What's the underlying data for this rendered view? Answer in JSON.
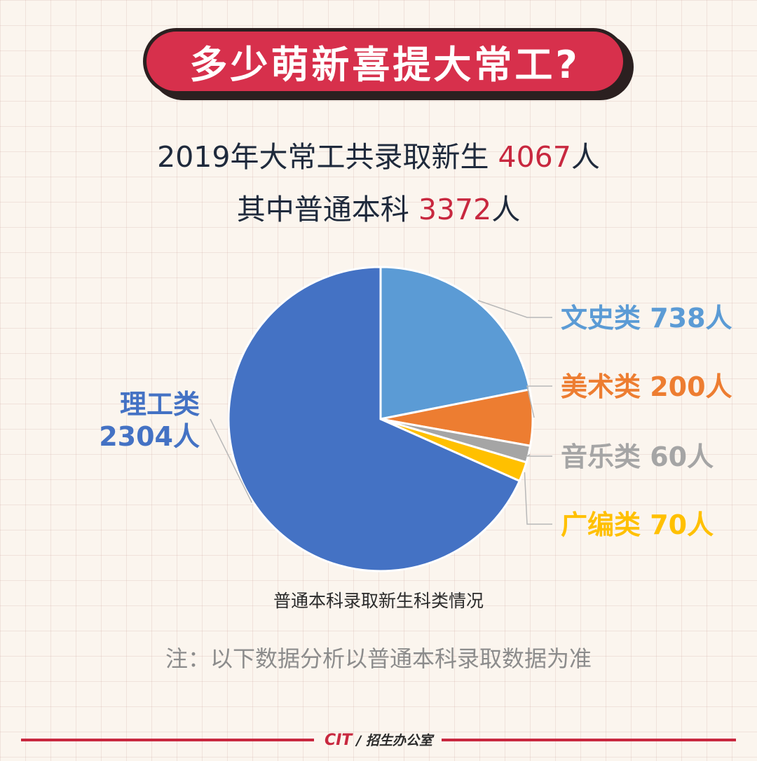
{
  "header": {
    "title": "多少萌新喜提大常工?"
  },
  "summary": {
    "line1_prefix": "2019年大常工共录取新生 ",
    "line1_value": "4067",
    "line1_suffix": "人",
    "line2_prefix": "其中普通本科 ",
    "line2_value": "3372",
    "line2_suffix": "人"
  },
  "chart_data": {
    "type": "pie",
    "caption": "普通本科录取新生科类情况",
    "slices": [
      {
        "name": "文史类",
        "value": 738,
        "label": "文史类 738人",
        "color": "#5b9bd5"
      },
      {
        "name": "美术类",
        "value": 200,
        "label": "美术类 200人",
        "color": "#ed7d31"
      },
      {
        "name": "音乐类",
        "value": 60,
        "label": "音乐类 60人",
        "color": "#a5a5a5"
      },
      {
        "name": "广编类",
        "value": 70,
        "label": "广编类 70人",
        "color": "#ffc000"
      },
      {
        "name": "理工类",
        "value": 2304,
        "label_lines": [
          "理工类",
          "2304人"
        ],
        "color": "#4472c4"
      }
    ]
  },
  "note": "注：以下数据分析以普通本科录取数据为准",
  "footer": {
    "logo": "CIT",
    "office": "/ 招生办公室"
  }
}
